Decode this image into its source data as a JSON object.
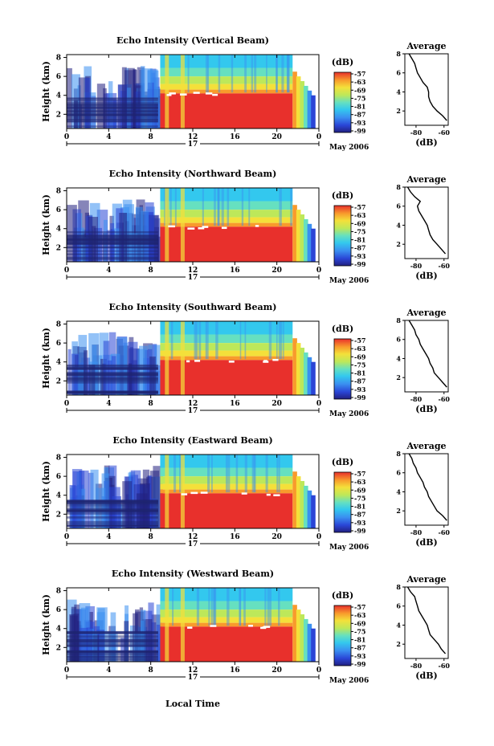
{
  "figure": {
    "month_label": "May 2006",
    "xlabel_bottom": "Local Time"
  },
  "chart_data": [
    {
      "type": "heatmap",
      "title": "Echo Intensity (Vertical Beam)",
      "ylabel": "Height (km)",
      "x_ticks": [
        "0",
        "4",
        "8",
        "12",
        "16",
        "20",
        "0"
      ],
      "x_range": [
        0,
        24
      ],
      "date_marker": "17",
      "y_ticks": [
        "2",
        "4",
        "6",
        "8"
      ],
      "y_range": [
        0.5,
        8.3
      ],
      "colorbar": {
        "unit": "(dB)",
        "ticks": [
          "-57",
          "-63",
          "-69",
          "-75",
          "-81",
          "-87",
          "-93",
          "-99"
        ],
        "range": [
          -99,
          -57
        ]
      },
      "profile": {
        "title": "Average",
        "xlabel": "(dB)",
        "x_ticks": [
          "-80",
          "-60"
        ],
        "x_range": [
          -88,
          -57
        ],
        "y_ticks": [
          "2",
          "4",
          "6",
          "8"
        ],
        "y_range": [
          0.5,
          8.0
        ],
        "height": [
          1.0,
          1.5,
          2.0,
          2.5,
          3.0,
          3.5,
          4.0,
          4.5,
          5.0,
          5.5,
          6.0,
          6.5,
          7.0,
          7.5,
          8.0
        ],
        "value": [
          -58,
          -61,
          -65,
          -68,
          -70,
          -71,
          -71,
          -72,
          -75,
          -77,
          -79,
          -80,
          -81,
          -83,
          -85
        ]
      }
    },
    {
      "type": "heatmap",
      "title": "Echo Intensity (Northward Beam)",
      "ylabel": "Height (km)",
      "x_ticks": [
        "0",
        "4",
        "8",
        "12",
        "16",
        "20",
        "0"
      ],
      "x_range": [
        0,
        24
      ],
      "date_marker": "17",
      "y_ticks": [
        "2",
        "4",
        "6",
        "8"
      ],
      "y_range": [
        0.5,
        8.3
      ],
      "colorbar": {
        "unit": "(dB)",
        "ticks": [
          "-57",
          "-63",
          "-69",
          "-75",
          "-81",
          "-87",
          "-93",
          "-99"
        ],
        "range": [
          -99,
          -57
        ]
      },
      "profile": {
        "title": "Average",
        "xlabel": "(dB)",
        "x_ticks": [
          "-80",
          "-60"
        ],
        "x_range": [
          -88,
          -57
        ],
        "y_ticks": [
          "2",
          "4",
          "6",
          "8"
        ],
        "y_range": [
          0.5,
          8.0
        ],
        "height": [
          1.0,
          1.5,
          2.0,
          2.5,
          3.0,
          3.5,
          4.0,
          4.5,
          5.0,
          5.5,
          6.0,
          6.5,
          7.0,
          7.5,
          8.0
        ],
        "value": [
          -59,
          -62,
          -65,
          -68,
          -70,
          -71,
          -72,
          -74,
          -76,
          -78,
          -79,
          -77,
          -81,
          -84,
          -86
        ]
      }
    },
    {
      "type": "heatmap",
      "title": "Echo Intensity (Southward Beam)",
      "ylabel": "Height (km)",
      "x_ticks": [
        "0",
        "4",
        "8",
        "12",
        "16",
        "20",
        "0"
      ],
      "x_range": [
        0,
        24
      ],
      "date_marker": "17",
      "y_ticks": [
        "2",
        "4",
        "6",
        "8"
      ],
      "y_range": [
        0.5,
        8.3
      ],
      "colorbar": {
        "unit": "(dB)",
        "ticks": [
          "-57",
          "-63",
          "-69",
          "-75",
          "-81",
          "-87",
          "-93",
          "-99"
        ],
        "range": [
          -99,
          -57
        ]
      },
      "profile": {
        "title": "Average",
        "xlabel": "(dB)",
        "x_ticks": [
          "-80",
          "-60"
        ],
        "x_range": [
          -88,
          -57
        ],
        "y_ticks": [
          "2",
          "4",
          "6",
          "8"
        ],
        "y_range": [
          0.5,
          8.0
        ],
        "height": [
          1.0,
          1.5,
          2.0,
          2.5,
          3.0,
          3.5,
          4.0,
          4.5,
          5.0,
          5.5,
          6.0,
          6.5,
          7.0,
          7.5,
          8.0
        ],
        "value": [
          -58,
          -61,
          -64,
          -67,
          -68,
          -70,
          -71,
          -73,
          -75,
          -77,
          -78,
          -80,
          -81,
          -83,
          -85
        ]
      }
    },
    {
      "type": "heatmap",
      "title": "Echo Intensity (Eastward Beam)",
      "ylabel": "Height (km)",
      "x_ticks": [
        "0",
        "4",
        "8",
        "12",
        "16",
        "20",
        "0"
      ],
      "x_range": [
        0,
        24
      ],
      "date_marker": "17",
      "y_ticks": [
        "2",
        "4",
        "6",
        "8"
      ],
      "y_range": [
        0.5,
        8.3
      ],
      "colorbar": {
        "unit": "(dB)",
        "ticks": [
          "-57",
          "-63",
          "-69",
          "-75",
          "-81",
          "-87",
          "-93",
          "-99"
        ],
        "range": [
          -99,
          -57
        ]
      },
      "profile": {
        "title": "Average",
        "xlabel": "(dB)",
        "x_ticks": [
          "-80",
          "-60"
        ],
        "x_range": [
          -88,
          -57
        ],
        "y_ticks": [
          "2",
          "4",
          "6",
          "8"
        ],
        "y_range": [
          0.5,
          8.0
        ],
        "height": [
          1.0,
          1.5,
          2.0,
          2.5,
          3.0,
          3.5,
          4.0,
          4.5,
          5.0,
          5.5,
          6.0,
          6.5,
          7.0,
          7.5,
          8.0
        ],
        "value": [
          -58,
          -61,
          -65,
          -67,
          -69,
          -71,
          -72,
          -74,
          -75,
          -77,
          -79,
          -80,
          -82,
          -83,
          -85
        ]
      }
    },
    {
      "type": "heatmap",
      "title": "Echo Intensity (Westward Beam)",
      "ylabel": "Height (km)",
      "x_ticks": [
        "0",
        "4",
        "8",
        "12",
        "16",
        "20",
        "0"
      ],
      "x_range": [
        0,
        24
      ],
      "date_marker": "17",
      "y_ticks": [
        "2",
        "4",
        "6",
        "8"
      ],
      "y_range": [
        0.5,
        8.3
      ],
      "colorbar": {
        "unit": "(dB)",
        "ticks": [
          "-57",
          "-63",
          "-69",
          "-75",
          "-81",
          "-87",
          "-93",
          "-99"
        ],
        "range": [
          -99,
          -57
        ]
      },
      "profile": {
        "title": "Average",
        "xlabel": "(dB)",
        "x_ticks": [
          "-80",
          "-60"
        ],
        "x_range": [
          -88,
          -57
        ],
        "y_ticks": [
          "2",
          "4",
          "6",
          "8"
        ],
        "y_range": [
          0.5,
          8.0
        ],
        "height": [
          1.0,
          1.5,
          2.0,
          2.5,
          3.0,
          3.5,
          4.0,
          4.5,
          5.0,
          5.5,
          6.0,
          6.5,
          7.0,
          7.5,
          8.0
        ],
        "value": [
          -59,
          -62,
          -64,
          -67,
          -70,
          -71,
          -72,
          -74,
          -76,
          -78,
          -79,
          -80,
          -81,
          -84,
          -86
        ]
      }
    }
  ]
}
